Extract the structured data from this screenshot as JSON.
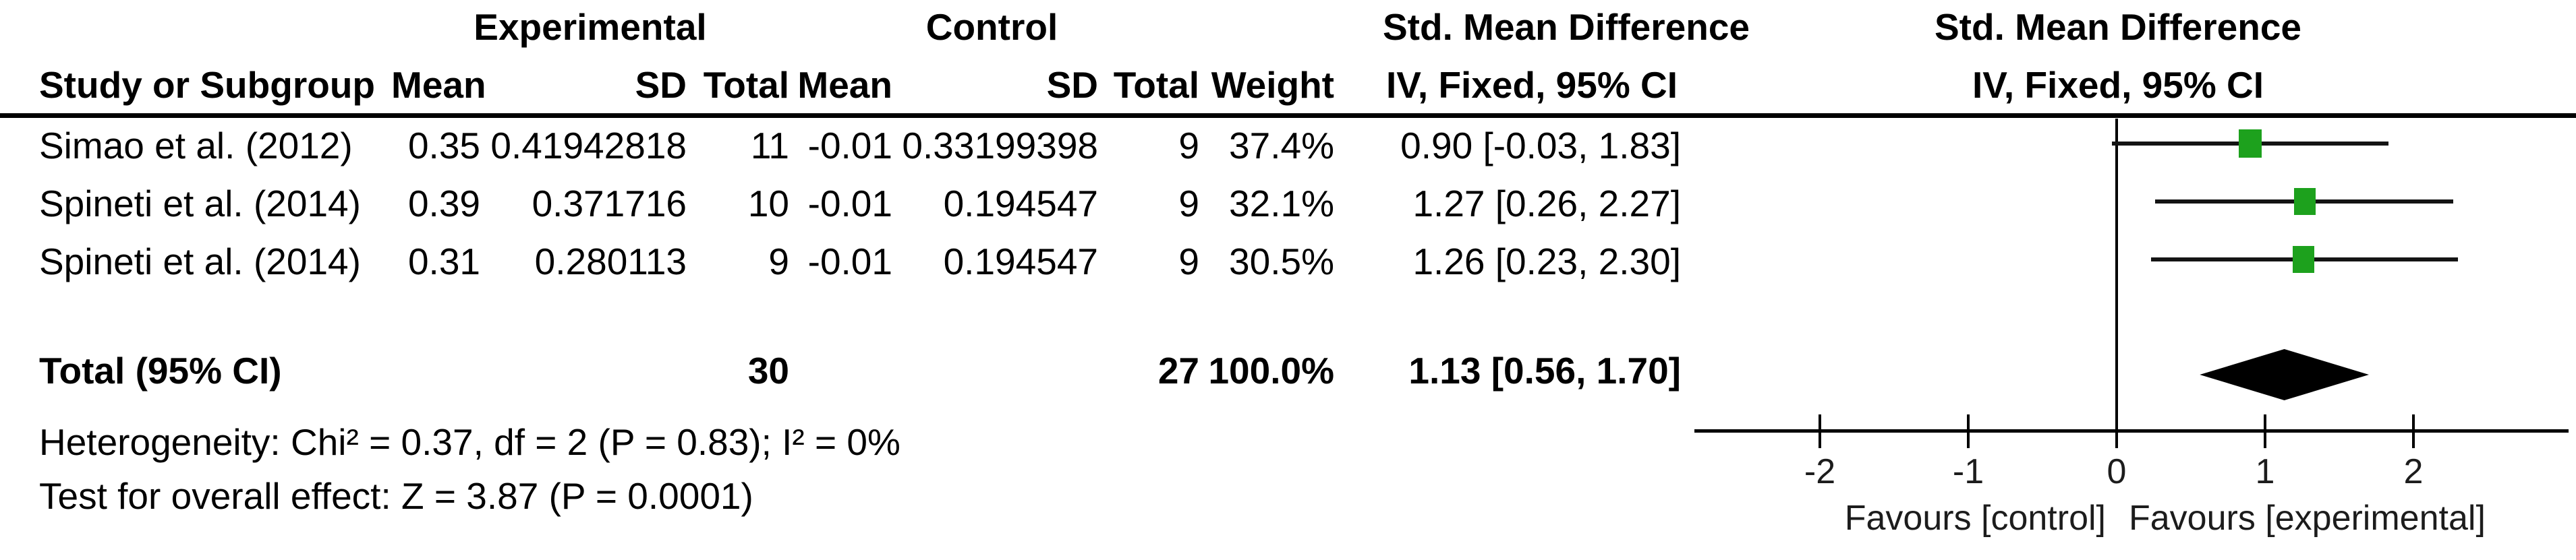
{
  "header": {
    "group_experimental": "Experimental",
    "group_control": "Control",
    "smd_title_table": "Std. Mean Difference",
    "smd_title_plot": "Std. Mean Difference",
    "col_study": "Study or Subgroup",
    "col_mean_exp": "Mean",
    "col_sd_exp": "SD",
    "col_total_exp": "Total",
    "col_mean_ctl": "Mean",
    "col_sd_ctl": "SD",
    "col_total_ctl": "Total",
    "col_weight": "Weight",
    "col_iv_table": "IV, Fixed, 95% CI",
    "col_iv_plot": "IV, Fixed, 95% CI"
  },
  "chart_data": {
    "type": "forest",
    "effect_label": "Std. Mean Difference",
    "method_label": "IV, Fixed, 95% CI",
    "studies": [
      {
        "label": "Simao et al. (2012)",
        "mean_exp": "0.35",
        "sd_exp": "0.41942818",
        "total_exp": "11",
        "mean_ctl": "-0.01",
        "sd_ctl": "0.33199398",
        "total_ctl": "9",
        "weight": "37.4%",
        "weight_pct": 37.4,
        "estimate_text": "0.90 [-0.03, 1.83]",
        "smd": 0.9,
        "ci_low": -0.03,
        "ci_high": 1.83
      },
      {
        "label": "Spineti et al. (2014)",
        "mean_exp": "0.39",
        "sd_exp": "0.371716",
        "total_exp": "10",
        "mean_ctl": "-0.01",
        "sd_ctl": "0.194547",
        "total_ctl": "9",
        "weight": "32.1%",
        "weight_pct": 32.1,
        "estimate_text": "1.27 [0.26, 2.27]",
        "smd": 1.27,
        "ci_low": 0.26,
        "ci_high": 2.27
      },
      {
        "label": "Spineti et al. (2014)",
        "mean_exp": "0.31",
        "sd_exp": "0.280113",
        "total_exp": "9",
        "mean_ctl": "-0.01",
        "sd_ctl": "0.194547",
        "total_ctl": "9",
        "weight": "30.5%",
        "weight_pct": 30.5,
        "estimate_text": "1.26 [0.23, 2.30]",
        "smd": 1.26,
        "ci_low": 0.23,
        "ci_high": 2.3
      }
    ],
    "total": {
      "label": "Total (95% CI)",
      "total_exp": "30",
      "total_ctl": "27",
      "weight": "100.0%",
      "estimate_text": "1.13 [0.56, 1.70]",
      "smd": 1.13,
      "ci_low": 0.56,
      "ci_high": 1.7
    },
    "footnotes": {
      "heterogeneity": "Heterogeneity: Chi² = 0.37, df = 2 (P = 0.83); I² = 0%",
      "overall_effect": "Test for overall effect: Z = 3.87 (P = 0.0001)"
    },
    "axis": {
      "ticks": [
        -2,
        -1,
        0,
        1,
        2
      ],
      "xlim": [
        -2.85,
        3.05
      ],
      "favours_left": "Favours [control]",
      "favours_right": "Favours [experimental]"
    },
    "colors": {
      "square": "#1da11d",
      "diamond": "#000000",
      "ci_line": "#141414"
    }
  }
}
